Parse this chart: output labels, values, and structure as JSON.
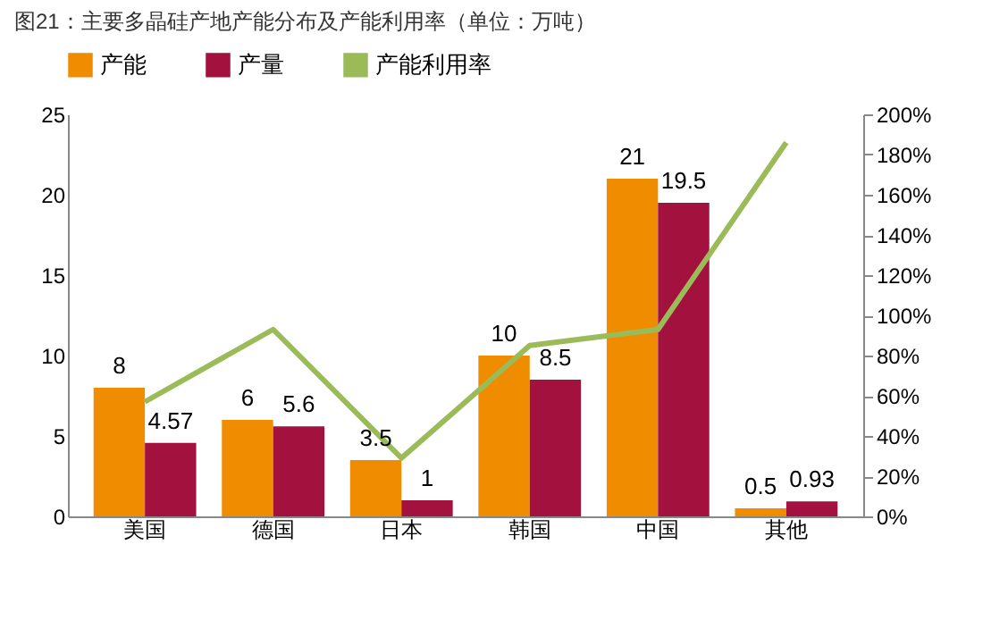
{
  "chart_data": {
    "type": "bar",
    "title": "图21：主要多晶硅产地产能分布及产能利用率（单位：万吨）",
    "categories": [
      "美国",
      "德国",
      "日本",
      "韩国",
      "中国",
      "其他"
    ],
    "series": [
      {
        "name": "产能",
        "color": "#f08c00",
        "values": [
          8,
          6,
          3.5,
          10,
          21,
          0.5
        ],
        "value_labels": [
          "8",
          "6",
          "3.5",
          "10",
          "21",
          "0.5"
        ]
      },
      {
        "name": "产量",
        "color": "#a3123f",
        "values": [
          4.57,
          5.6,
          1,
          8.5,
          19.5,
          0.93
        ],
        "value_labels": [
          "4.57",
          "5.6",
          "1",
          "8.5",
          "19.5",
          "0.93"
        ]
      },
      {
        "name": "产能利用率",
        "type": "line",
        "axis": "y2",
        "color": "#9bbb59",
        "values": [
          57,
          93,
          29,
          85,
          93,
          186
        ]
      }
    ],
    "ylim": [
      0,
      25
    ],
    "yticks": [
      0,
      5,
      10,
      15,
      20,
      25
    ],
    "y2lim": [
      0,
      200
    ],
    "y2ticks": [
      {
        "value": 0,
        "label": "0%"
      },
      {
        "value": 20,
        "label": "20%"
      },
      {
        "value": 40,
        "label": "40%"
      },
      {
        "value": 60,
        "label": "60%"
      },
      {
        "value": 80,
        "label": "80%"
      },
      {
        "value": 100,
        "label": "100%"
      },
      {
        "value": 120,
        "label": "120%"
      },
      {
        "value": 140,
        "label": "140%"
      },
      {
        "value": 160,
        "label": "160%"
      },
      {
        "value": 180,
        "label": "180%"
      },
      {
        "value": 200,
        "label": "200%"
      }
    ],
    "legend": "top",
    "grid": false,
    "marker": "none",
    "line_style": "solid"
  }
}
